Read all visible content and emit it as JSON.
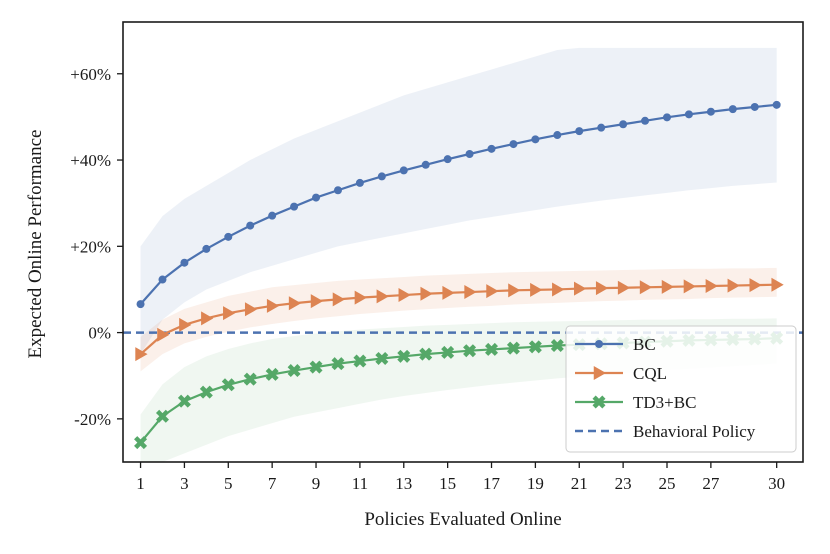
{
  "chart_data": {
    "type": "line",
    "title": "",
    "xlabel": "Policies Evaluated Online",
    "ylabel": "Expected Online Performance",
    "xlim": [
      0.2,
      31.2
    ],
    "ylim": [
      -30,
      72
    ],
    "xticks": [
      1,
      3,
      5,
      7,
      9,
      11,
      13,
      15,
      17,
      19,
      21,
      23,
      25,
      27,
      30
    ],
    "yticks": [
      -20,
      0,
      20,
      40,
      60
    ],
    "ytick_labels": [
      "-20%",
      "0%",
      "+20%",
      "+40%",
      "+60%"
    ],
    "grid": false,
    "legend_position": "lower-right",
    "x": [
      1,
      2,
      3,
      4,
      5,
      6,
      7,
      8,
      9,
      10,
      11,
      12,
      13,
      14,
      15,
      16,
      17,
      18,
      19,
      20,
      21,
      22,
      23,
      24,
      25,
      26,
      27,
      28,
      29,
      30
    ],
    "series": [
      {
        "name": "BC",
        "color": "#4c72b0",
        "marker": "circle",
        "values": [
          6.6,
          12.3,
          16.2,
          19.4,
          22.2,
          24.8,
          27.1,
          29.2,
          31.3,
          33.0,
          34.7,
          36.2,
          37.6,
          38.9,
          40.2,
          41.4,
          42.6,
          43.7,
          44.8,
          45.8,
          46.7,
          47.5,
          48.3,
          49.1,
          49.9,
          50.6,
          51.2,
          51.8,
          52.3,
          52.8
        ],
        "band_lower": [
          -5,
          3,
          7,
          10,
          12,
          14,
          15.5,
          17,
          18.5,
          20,
          21,
          22,
          23,
          24,
          25,
          26,
          26.8,
          27.6,
          28.4,
          29.2,
          29.9,
          30.6,
          31.2,
          31.8,
          32.4,
          33,
          33.5,
          34,
          34.4,
          34.8
        ],
        "band_upper": [
          20,
          27,
          31,
          34,
          37,
          40,
          42.5,
          45,
          47,
          49,
          51,
          53,
          55,
          56.5,
          58,
          59.5,
          61,
          62.5,
          64,
          65.5,
          66,
          66,
          66,
          66,
          66,
          66,
          66,
          66,
          66,
          66
        ]
      },
      {
        "name": "CQL",
        "color": "#dd8452",
        "marker": "triangle-right",
        "values": [
          -5.0,
          -0.5,
          1.8,
          3.3,
          4.5,
          5.4,
          6.2,
          6.8,
          7.3,
          7.7,
          8.1,
          8.4,
          8.7,
          9.0,
          9.2,
          9.4,
          9.6,
          9.8,
          9.9,
          10.0,
          10.2,
          10.3,
          10.4,
          10.5,
          10.6,
          10.7,
          10.8,
          10.9,
          11.0,
          11.1
        ],
        "band_lower": [
          -9,
          -5,
          -2.5,
          -1,
          0.2,
          1.2,
          2,
          2.7,
          3.3,
          3.8,
          4.3,
          4.7,
          5.1,
          5.4,
          5.7,
          6,
          6.2,
          6.5,
          6.7,
          6.9,
          7.1,
          7.3,
          7.4,
          7.6,
          7.7,
          7.8,
          8,
          8.1,
          8.2,
          8.3
        ],
        "band_upper": [
          -1,
          3,
          5.5,
          7,
          8.5,
          9.5,
          10.5,
          11,
          11.5,
          12,
          12.3,
          12.6,
          12.9,
          13.2,
          13.4,
          13.6,
          13.8,
          14,
          14.1,
          14.2,
          14.3,
          14.4,
          14.5,
          14.6,
          14.7,
          14.8,
          14.8,
          14.9,
          14.9,
          15
        ]
      },
      {
        "name": "TD3+BC",
        "color": "#55a868",
        "marker": "x-filled",
        "values": [
          -25.5,
          -19.4,
          -15.9,
          -13.8,
          -12.1,
          -10.8,
          -9.7,
          -8.8,
          -8.0,
          -7.2,
          -6.6,
          -6.0,
          -5.5,
          -5.0,
          -4.6,
          -4.2,
          -3.9,
          -3.6,
          -3.3,
          -3.0,
          -2.8,
          -2.6,
          -2.4,
          -2.2,
          -2.0,
          -1.8,
          -1.7,
          -1.6,
          -1.5,
          -1.3
        ],
        "band_lower": [
          -30,
          -30,
          -28,
          -26,
          -24,
          -22.5,
          -21,
          -19.5,
          -18.5,
          -17.5,
          -16.5,
          -15.5,
          -14.7,
          -14,
          -13.3,
          -12.7,
          -12.1,
          -11.6,
          -11.1,
          -10.6,
          -10.2,
          -9.8,
          -9.4,
          -9,
          -8.7,
          -8.4,
          -8.1,
          -7.8,
          -7.5,
          -7.2
        ],
        "band_upper": [
          -19,
          -12,
          -8,
          -5.5,
          -3.8,
          -2.5,
          -1.5,
          -0.8,
          -0.2,
          0.3,
          0.7,
          1,
          1.3,
          1.6,
          1.8,
          2,
          2.2,
          2.4,
          2.5,
          2.6,
          2.7,
          2.8,
          2.9,
          3,
          3,
          3.1,
          3.1,
          3.2,
          3.2,
          3.3
        ]
      }
    ],
    "reference_line": {
      "name": "Behavioral Policy",
      "y": 0,
      "color": "#4c72b0",
      "style": "dashed"
    }
  }
}
